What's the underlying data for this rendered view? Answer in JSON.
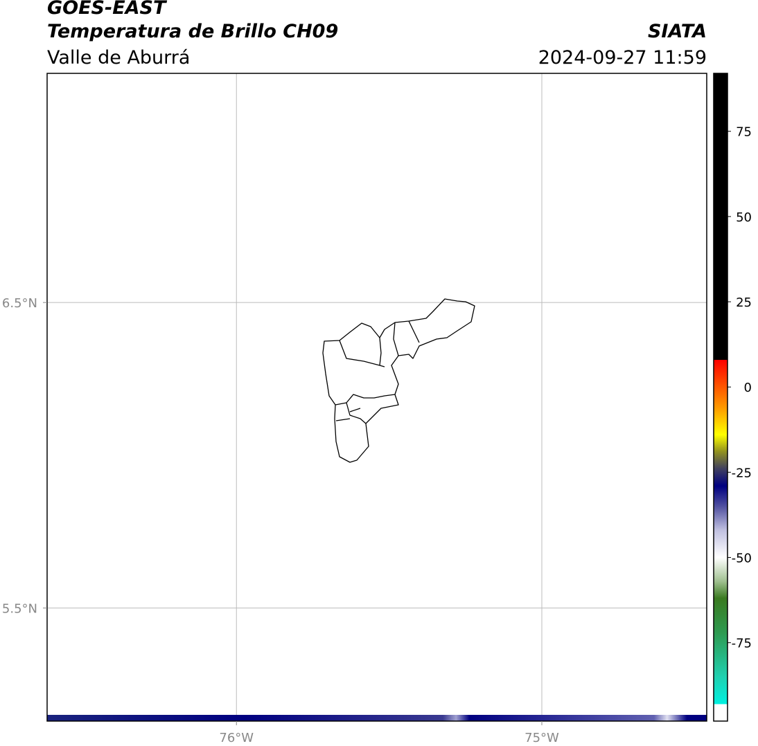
{
  "chart_data": {
    "type": "map",
    "title": "GOES-EAST",
    "subtitle": "Temperatura de Brillo CH09",
    "region": "Valle de Aburrá",
    "source": "SIATA",
    "datetime": "2024-09-27 11:59",
    "xlim": [
      -76.62,
      -74.46
    ],
    "ylim": [
      5.13,
      7.25
    ],
    "xticks": [
      {
        "value": -76,
        "label": "76°W"
      },
      {
        "value": -75,
        "label": "75°W"
      }
    ],
    "yticks": [
      {
        "value": 6.5,
        "label": "6.5°N"
      },
      {
        "value": 5.5,
        "label": "5.5°N"
      }
    ],
    "grid": true,
    "colorbar": {
      "lim": [
        -98,
        92
      ],
      "ticks": [
        75,
        50,
        25,
        0,
        -25,
        -50,
        -75
      ],
      "stops": [
        {
          "value": -98,
          "color": "#ffffff"
        },
        {
          "value": -93,
          "color": "#ffffff"
        },
        {
          "value": -93,
          "color": "#00f0e0"
        },
        {
          "value": -85,
          "color": "#20d0b0"
        },
        {
          "value": -72,
          "color": "#2e9a50"
        },
        {
          "value": -62,
          "color": "#3a7a20"
        },
        {
          "value": -57,
          "color": "#a0c090"
        },
        {
          "value": -50,
          "color": "#ffffff"
        },
        {
          "value": -42,
          "color": "#c0c0e0"
        },
        {
          "value": -35,
          "color": "#5050a0"
        },
        {
          "value": -29,
          "color": "#000080"
        },
        {
          "value": -24,
          "color": "#404060"
        },
        {
          "value": -19,
          "color": "#909020"
        },
        {
          "value": -14,
          "color": "#ffff00"
        },
        {
          "value": -6,
          "color": "#ff9900"
        },
        {
          "value": 8,
          "color": "#ff0000"
        },
        {
          "value": 8,
          "color": "#000000"
        },
        {
          "value": 92,
          "color": "#000000"
        }
      ]
    }
  }
}
